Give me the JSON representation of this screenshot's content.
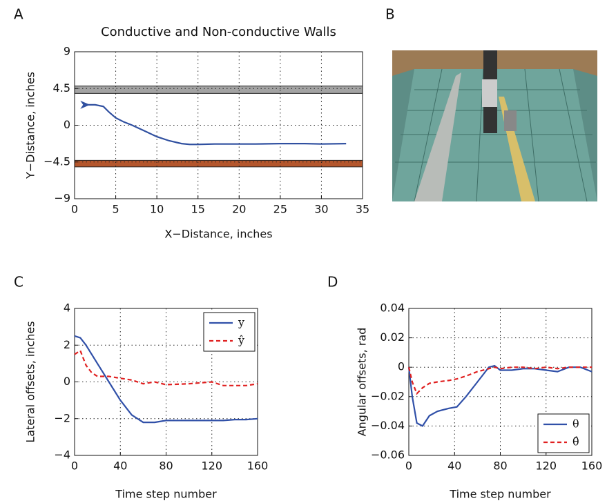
{
  "photo_panel": "B",
  "chart_data": [
    {
      "type": "line",
      "panel": "A",
      "title": "Conductive and Non-conductive Walls",
      "x_label": "X−Distance, inches",
      "y_label": "Y−Distance, inches",
      "x": [
        1.2,
        2.5,
        3.5,
        4.2,
        5,
        6,
        7,
        8.5,
        10,
        11.5,
        13,
        14,
        15,
        17,
        20,
        22,
        25,
        28,
        30,
        33
      ],
      "series": [
        {
          "name": null,
          "color": "#3050a0",
          "linestyle": "solid",
          "values": [
            2.5,
            2.5,
            2.3,
            1.6,
            0.9,
            0.4,
            0,
            -0.7,
            -1.4,
            -1.9,
            -2.25,
            -2.35,
            -2.35,
            -2.3,
            -2.3,
            -2.3,
            -2.25,
            -2.25,
            -2.3,
            -2.25
          ]
        }
      ],
      "walls": [
        {
          "y": [
            3.9,
            4.8
          ],
          "color": "#a3a3a3"
        },
        {
          "y": [
            -5.1,
            -4.3
          ],
          "color": "#b4562c"
        }
      ],
      "xlim": [
        0,
        35
      ],
      "xticks": [
        0,
        5,
        10,
        15,
        20,
        25,
        30,
        35
      ],
      "ylim": [
        -9,
        9
      ],
      "yticks": [
        {
          "value": -9,
          "label": "−9"
        },
        {
          "value": -4.5,
          "label": "−4.5"
        },
        0,
        4.5,
        9
      ],
      "grid": true
    },
    {
      "type": "line",
      "panel": "C",
      "x_label": "Time step number",
      "y_label": "Lateral offsets, inches",
      "x": [
        0,
        5,
        10,
        15,
        20,
        30,
        40,
        50,
        60,
        70,
        80,
        100,
        120,
        130,
        140,
        150,
        160
      ],
      "series": [
        {
          "name": "y",
          "color": "#3050a8",
          "linestyle": "solid",
          "values": [
            2.5,
            2.4,
            2.0,
            1.5,
            1.0,
            0.0,
            -1.0,
            -1.8,
            -2.2,
            -2.2,
            -2.1,
            -2.1,
            -2.1,
            -2.1,
            -2.05,
            -2.05,
            -2.0
          ]
        },
        {
          "name": "ŷ",
          "color": "#e02020",
          "linestyle": "dashed",
          "values": [
            1.5,
            1.7,
            0.9,
            0.5,
            0.3,
            0.3,
            0.2,
            0.1,
            -0.1,
            0.0,
            -0.15,
            -0.1,
            0.0,
            -0.2,
            -0.2,
            -0.2,
            -0.1
          ]
        }
      ],
      "xlim": [
        0,
        160
      ],
      "xticks": [
        0,
        40,
        80,
        120,
        160
      ],
      "ylim": [
        -4,
        4
      ],
      "yticks": [
        {
          "value": -4,
          "label": "−4"
        },
        {
          "value": -2,
          "label": "−2"
        },
        0,
        2,
        4
      ],
      "grid": true,
      "legend": "upper-right"
    },
    {
      "type": "line",
      "panel": "D",
      "x_label": "Time step number",
      "y_label": "Angular offsets, rad",
      "x": [
        0,
        3,
        7,
        12,
        18,
        25,
        35,
        42,
        50,
        60,
        70,
        75,
        80,
        90,
        100,
        110,
        120,
        130,
        140,
        150,
        160
      ],
      "series": [
        {
          "name": "θ",
          "color": "#3050a8",
          "linestyle": "solid",
          "values": [
            0,
            -0.02,
            -0.038,
            -0.04,
            -0.033,
            -0.03,
            -0.028,
            -0.027,
            -0.02,
            -0.01,
            0,
            0.001,
            -0.002,
            -0.002,
            -0.001,
            -0.001,
            -0.002,
            -0.003,
            0,
            0,
            -0.003
          ]
        },
        {
          "name": "θ̂",
          "color": "#e02020",
          "linestyle": "dashed",
          "values": [
            0,
            -0.01,
            -0.018,
            -0.014,
            -0.011,
            -0.01,
            -0.009,
            -0.008,
            -0.006,
            -0.003,
            -0.001,
            0,
            -0.001,
            0,
            0,
            -0.001,
            0,
            -0.001,
            0,
            0,
            0
          ]
        }
      ],
      "xlim": [
        0,
        160
      ],
      "xticks": [
        0,
        40,
        80,
        120,
        160
      ],
      "ylim": [
        -0.06,
        0.04
      ],
      "yticks": [
        {
          "value": -0.06,
          "label": "−0.06"
        },
        {
          "value": -0.04,
          "label": "−0.04"
        },
        {
          "value": -0.02,
          "label": "−0.02"
        },
        0,
        0.02,
        0.04
      ],
      "grid": true,
      "legend": "lower-right"
    }
  ]
}
